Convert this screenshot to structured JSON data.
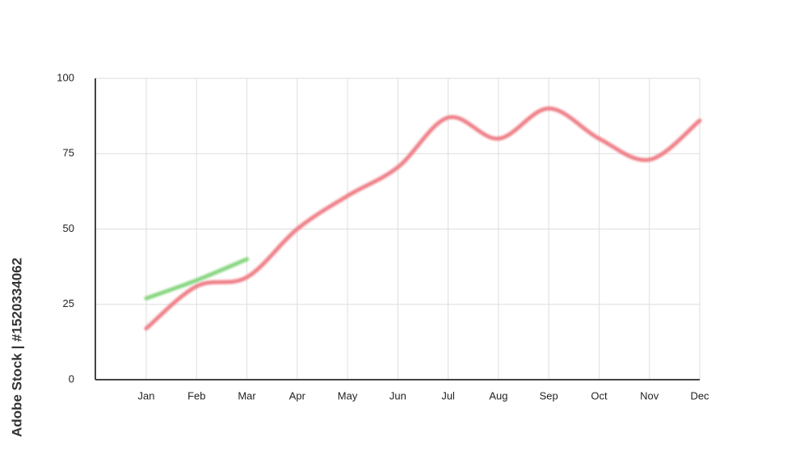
{
  "chart_data": {
    "type": "line",
    "categories": [
      "Jan",
      "Feb",
      "Mar",
      "Apr",
      "May",
      "Jun",
      "Jul",
      "Aug",
      "Sep",
      "Oct",
      "Nov",
      "Dec"
    ],
    "series": [
      {
        "color": "#ef8088",
        "values": [
          17,
          31,
          34,
          50,
          61,
          70.5,
          87,
          80,
          90,
          80,
          73,
          86
        ]
      },
      {
        "color": "#86d680",
        "values": [
          27,
          33,
          40,
          null,
          null,
          null,
          null,
          null,
          null,
          null,
          null,
          null
        ]
      }
    ],
    "ylim": [
      0,
      100
    ],
    "yticks": [
      0,
      25,
      50,
      75,
      100
    ],
    "grid": true,
    "watermark": "Adobe Stock | #1520334062"
  }
}
